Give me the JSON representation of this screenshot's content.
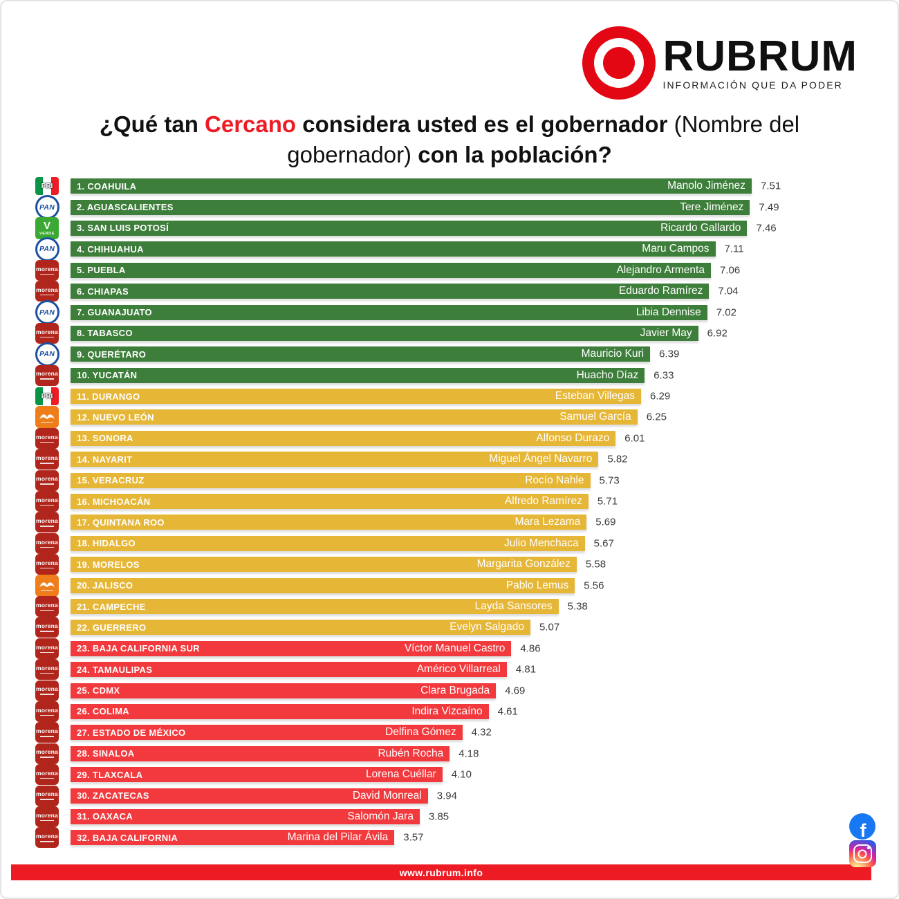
{
  "brand": {
    "name": "RUBRUM",
    "tagline": "INFORMACIÓN QUE DA PODER"
  },
  "title": {
    "p1": "¿Qué tan ",
    "p2": "Cercano",
    "p3": " considera usted es el gobernador ",
    "p4": "(Nombre del gobernador)",
    "p5": " con la población?"
  },
  "footer": {
    "url": "www.rubrum.info"
  },
  "social": {
    "facebook": "facebook-icon",
    "instagram": "instagram-icon"
  },
  "colors": {
    "brand_red": "#e30613",
    "footer_red": "#ed1c24",
    "tier_green": "#3e7e3b",
    "tier_yellow": "#e6b637",
    "tier_red": "#f2393d",
    "morena_red": "#b0261c",
    "mc_orange": "#ef7d1a",
    "pan_blue": "#1b50a0",
    "verde_green": "#3aa832",
    "facebook_blue": "#1877f2"
  },
  "chart_data": {
    "type": "bar",
    "orientation": "horizontal",
    "title": "¿Qué tan Cercano considera usted es el gobernador (Nombre del gobernador) con la población?",
    "value_range": [
      0,
      7.51
    ],
    "value_label_format": "2 decimals",
    "tier_legend": {
      "green": "ranks 1-10",
      "yellow": "ranks 11-22",
      "red": "ranks 23-32"
    },
    "rows": [
      {
        "rank": 1,
        "state": "COAHUILA",
        "governor": "Manolo Jiménez",
        "score": 7.51,
        "party": "PRI",
        "tier": "green"
      },
      {
        "rank": 2,
        "state": "AGUASCALIENTES",
        "governor": "Tere Jiménez",
        "score": 7.49,
        "party": "PAN",
        "tier": "green"
      },
      {
        "rank": 3,
        "state": "SAN LUIS POTOSÍ",
        "governor": "Ricardo Gallardo",
        "score": 7.46,
        "party": "VERDE",
        "tier": "green"
      },
      {
        "rank": 4,
        "state": "CHIHUAHUA",
        "governor": "Maru Campos",
        "score": 7.11,
        "party": "PAN",
        "tier": "green"
      },
      {
        "rank": 5,
        "state": "PUEBLA",
        "governor": "Alejandro Armenta",
        "score": 7.06,
        "party": "MORENA",
        "tier": "green"
      },
      {
        "rank": 6,
        "state": "CHIAPAS",
        "governor": "Eduardo Ramírez",
        "score": 7.04,
        "party": "MORENA",
        "tier": "green"
      },
      {
        "rank": 7,
        "state": "GUANAJUATO",
        "governor": "Libia Dennise",
        "score": 7.02,
        "party": "PAN",
        "tier": "green"
      },
      {
        "rank": 8,
        "state": "TABASCO",
        "governor": "Javier May",
        "score": 6.92,
        "party": "MORENA",
        "tier": "green"
      },
      {
        "rank": 9,
        "state": "QUERÉTARO",
        "governor": "Mauricio Kuri",
        "score": 6.39,
        "party": "PAN",
        "tier": "green"
      },
      {
        "rank": 10,
        "state": "YUCATÁN",
        "governor": "Huacho Díaz",
        "score": 6.33,
        "party": "MORENA",
        "tier": "green"
      },
      {
        "rank": 11,
        "state": "DURANGO",
        "governor": "Esteban Villegas",
        "score": 6.29,
        "party": "PRI",
        "tier": "yellow"
      },
      {
        "rank": 12,
        "state": "NUEVO LEÓN",
        "governor": "Samuel García",
        "score": 6.25,
        "party": "MC",
        "tier": "yellow"
      },
      {
        "rank": 13,
        "state": "SONORA",
        "governor": "Alfonso Durazo",
        "score": 6.01,
        "party": "MORENA",
        "tier": "yellow"
      },
      {
        "rank": 14,
        "state": "NAYARIT",
        "governor": "Miguel Ángel Navarro",
        "score": 5.82,
        "party": "MORENA",
        "tier": "yellow"
      },
      {
        "rank": 15,
        "state": "VERACRUZ",
        "governor": "Rocío Nahle",
        "score": 5.73,
        "party": "MORENA",
        "tier": "yellow"
      },
      {
        "rank": 16,
        "state": "MICHOACÁN",
        "governor": "Alfredo Ramírez",
        "score": 5.71,
        "party": "MORENA",
        "tier": "yellow"
      },
      {
        "rank": 17,
        "state": "QUINTANA ROO",
        "governor": "Mara Lezama",
        "score": 5.69,
        "party": "MORENA",
        "tier": "yellow"
      },
      {
        "rank": 18,
        "state": "HIDALGO",
        "governor": "Julio Menchaca",
        "score": 5.67,
        "party": "MORENA",
        "tier": "yellow"
      },
      {
        "rank": 19,
        "state": "MORELOS",
        "governor": "Margarita González",
        "score": 5.58,
        "party": "MORENA",
        "tier": "yellow"
      },
      {
        "rank": 20,
        "state": "JALISCO",
        "governor": "Pablo Lemus",
        "score": 5.56,
        "party": "MC",
        "tier": "yellow"
      },
      {
        "rank": 21,
        "state": "CAMPECHE",
        "governor": "Layda Sansores",
        "score": 5.38,
        "party": "MORENA",
        "tier": "yellow"
      },
      {
        "rank": 22,
        "state": "GUERRERO",
        "governor": "Evelyn Salgado",
        "score": 5.07,
        "party": "MORENA",
        "tier": "yellow"
      },
      {
        "rank": 23,
        "state": "BAJA CALIFORNIA SUR",
        "governor": "Víctor Manuel Castro",
        "score": 4.86,
        "party": "MORENA",
        "tier": "red"
      },
      {
        "rank": 24,
        "state": "TAMAULIPAS",
        "governor": "Américo Villarreal",
        "score": 4.81,
        "party": "MORENA",
        "tier": "red"
      },
      {
        "rank": 25,
        "state": "CDMX",
        "governor": "Clara Brugada",
        "score": 4.69,
        "party": "MORENA",
        "tier": "red"
      },
      {
        "rank": 26,
        "state": "COLIMA",
        "governor": "Indira Vizcaíno",
        "score": 4.61,
        "party": "MORENA",
        "tier": "red"
      },
      {
        "rank": 27,
        "state": "ESTADO DE MÉXICO",
        "governor": "Delfina Gómez",
        "score": 4.32,
        "party": "MORENA",
        "tier": "red"
      },
      {
        "rank": 28,
        "state": "SINALOA",
        "governor": "Rubén Rocha",
        "score": 4.18,
        "party": "MORENA",
        "tier": "red"
      },
      {
        "rank": 29,
        "state": "TLAXCALA",
        "governor": "Lorena Cuéllar",
        "score": 4.1,
        "party": "MORENA",
        "tier": "red"
      },
      {
        "rank": 30,
        "state": "ZACATECAS",
        "governor": "David Monreal",
        "score": 3.94,
        "party": "MORENA",
        "tier": "red"
      },
      {
        "rank": 31,
        "state": "OAXACA",
        "governor": "Salomón Jara",
        "score": 3.85,
        "party": "MORENA",
        "tier": "red"
      },
      {
        "rank": 32,
        "state": "BAJA CALIFORNIA",
        "governor": "Marina del Pilar Ávila",
        "score": 3.57,
        "party": "MORENA",
        "tier": "red"
      }
    ]
  }
}
